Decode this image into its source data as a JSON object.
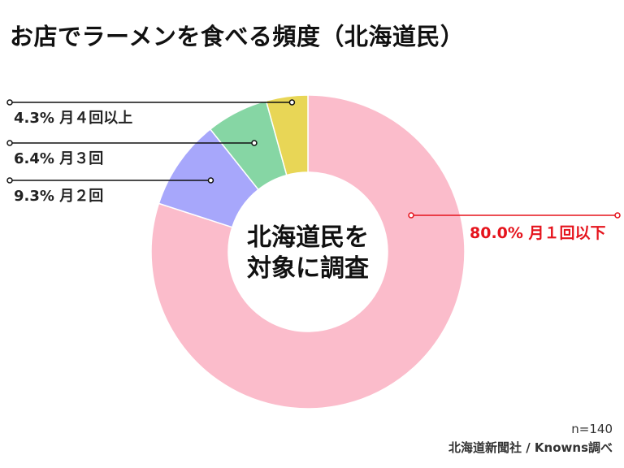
{
  "title": "お店でラーメンを食べる頻度（北海道民）",
  "center_label_lines": [
    "北海道民を",
    "対象に調査"
  ],
  "sample_size": "n=140",
  "source": "北海道新聞社 / Knowns調べ",
  "chart_data": {
    "type": "pie",
    "variant": "donut",
    "title": "お店でラーメンを食べる頻度（北海道民）",
    "slices": [
      {
        "label": "月１回以下",
        "value": 80.0,
        "value_label": "80.0%",
        "color": "#fbbccb",
        "label_color": "#e5131c"
      },
      {
        "label": "月２回",
        "value": 9.3,
        "value_label": "9.3%",
        "color": "#a7a7fb",
        "label_color": "#222222"
      },
      {
        "label": "月３回",
        "value": 6.4,
        "value_label": "6.4%",
        "color": "#86d6a4",
        "label_color": "#222222"
      },
      {
        "label": "月４回以上",
        "value": 4.3,
        "value_label": "4.3%",
        "color": "#e8d656",
        "label_color": "#222222"
      }
    ],
    "start_angle_deg": 0,
    "direction": "clockwise",
    "legend": "none"
  }
}
